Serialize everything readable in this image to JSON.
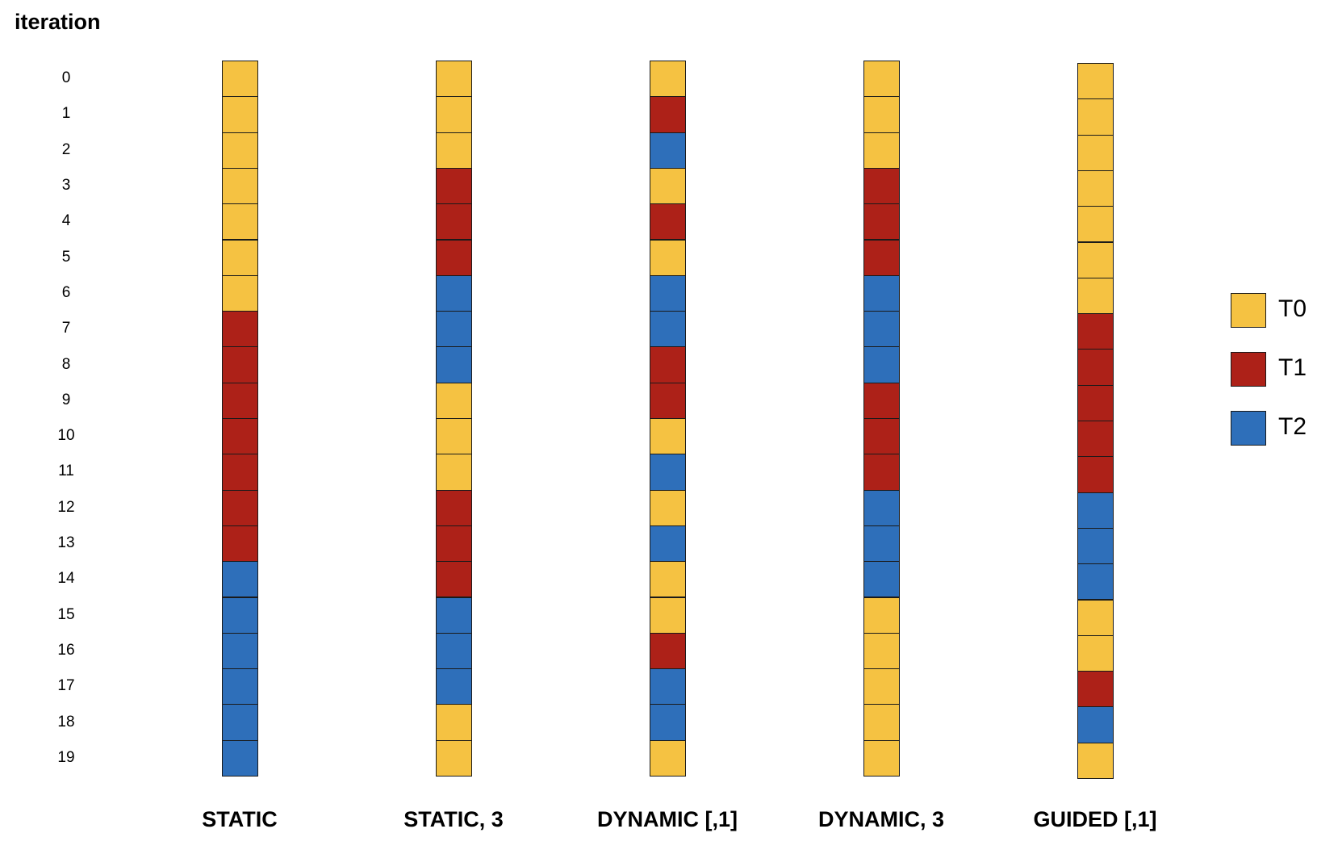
{
  "diagram": {
    "y_title": "iteration",
    "iterations": [
      "0",
      "1",
      "2",
      "3",
      "4",
      "5",
      "6",
      "7",
      "8",
      "9",
      "10",
      "11",
      "12",
      "13",
      "14",
      "15",
      "16",
      "17",
      "18",
      "19"
    ],
    "threads": [
      {
        "name": "T0",
        "color": "#F5C242"
      },
      {
        "name": "T1",
        "color": "#AD2118"
      },
      {
        "name": "T2",
        "color": "#2E6FBA"
      }
    ],
    "schedules": [
      {
        "label": "STATIC",
        "assignment": [
          "T0",
          "T0",
          "T0",
          "T0",
          "T0",
          "T0",
          "T0",
          "T1",
          "T1",
          "T1",
          "T1",
          "T1",
          "T1",
          "T1",
          "T2",
          "T2",
          "T2",
          "T2",
          "T2",
          "T2"
        ]
      },
      {
        "label": "STATIC, 3",
        "assignment": [
          "T0",
          "T0",
          "T0",
          "T1",
          "T1",
          "T1",
          "T2",
          "T2",
          "T2",
          "T0",
          "T0",
          "T0",
          "T1",
          "T1",
          "T1",
          "T2",
          "T2",
          "T2",
          "T0",
          "T0"
        ]
      },
      {
        "label": "DYNAMIC [,1]",
        "assignment": [
          "T0",
          "T1",
          "T2",
          "T0",
          "T1",
          "T0",
          "T2",
          "T2",
          "T1",
          "T1",
          "T0",
          "T2",
          "T0",
          "T2",
          "T0",
          "T0",
          "T1",
          "T2",
          "T2",
          "T0"
        ]
      },
      {
        "label": "DYNAMIC, 3",
        "assignment": [
          "T0",
          "T0",
          "T0",
          "T1",
          "T1",
          "T1",
          "T2",
          "T2",
          "T2",
          "T1",
          "T1",
          "T1",
          "T2",
          "T2",
          "T2",
          "T0",
          "T0",
          "T0",
          "T0",
          "T0"
        ]
      },
      {
        "label": "GUIDED [,1]",
        "assignment": [
          "T0",
          "T0",
          "T0",
          "T0",
          "T0",
          "T0",
          "T0",
          "T1",
          "T1",
          "T1",
          "T1",
          "T1",
          "T2",
          "T2",
          "T2",
          "T0",
          "T0",
          "T1",
          "T2",
          "T0"
        ]
      }
    ]
  }
}
